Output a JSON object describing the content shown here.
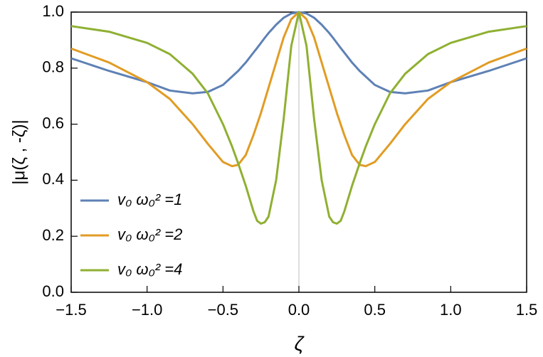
{
  "chart_data": {
    "type": "line",
    "x_label": "ζ",
    "y_label": "|μ(ζ , -ζ)|",
    "x": [
      -1.5,
      -1.25,
      -1.0,
      -0.85,
      -0.7,
      -0.6,
      -0.5,
      -0.44,
      -0.4,
      -0.35,
      -0.3,
      -0.275,
      -0.25,
      -0.225,
      -0.2,
      -0.15,
      -0.1,
      -0.05,
      0,
      0.05,
      0.1,
      0.15,
      0.2,
      0.225,
      0.25,
      0.275,
      0.3,
      0.35,
      0.4,
      0.44,
      0.5,
      0.6,
      0.7,
      0.85,
      1.0,
      1.25,
      1.5
    ],
    "series": [
      {
        "name": "v₀ ω₀² =1",
        "color": "#5e81b5",
        "values": [
          0.835,
          0.79,
          0.75,
          0.72,
          0.71,
          0.715,
          0.74,
          0.77,
          0.79,
          0.82,
          0.855,
          0.872,
          0.89,
          0.908,
          0.925,
          0.955,
          0.98,
          0.995,
          1.0,
          0.995,
          0.98,
          0.955,
          0.925,
          0.908,
          0.89,
          0.872,
          0.855,
          0.82,
          0.79,
          0.77,
          0.74,
          0.715,
          0.71,
          0.72,
          0.75,
          0.79,
          0.835
        ]
      },
      {
        "name": "v₀ ω₀² =2",
        "color": "#e19c24",
        "values": [
          0.87,
          0.82,
          0.75,
          0.69,
          0.6,
          0.53,
          0.465,
          0.45,
          0.455,
          0.49,
          0.56,
          0.6,
          0.64,
          0.685,
          0.73,
          0.82,
          0.91,
          0.975,
          1.0,
          0.975,
          0.91,
          0.82,
          0.73,
          0.685,
          0.64,
          0.6,
          0.56,
          0.49,
          0.455,
          0.45,
          0.465,
          0.53,
          0.6,
          0.69,
          0.75,
          0.82,
          0.87
        ]
      },
      {
        "name": "v₀ ω₀² =4",
        "color": "#8fb032",
        "values": [
          0.95,
          0.93,
          0.89,
          0.85,
          0.78,
          0.71,
          0.6,
          0.52,
          0.46,
          0.38,
          0.29,
          0.255,
          0.245,
          0.25,
          0.27,
          0.4,
          0.62,
          0.88,
          1.0,
          0.88,
          0.62,
          0.4,
          0.27,
          0.25,
          0.245,
          0.255,
          0.29,
          0.38,
          0.46,
          0.52,
          0.6,
          0.71,
          0.78,
          0.85,
          0.89,
          0.93,
          0.95
        ]
      }
    ],
    "xlim": [
      -1.5,
      1.5
    ],
    "xticks": [
      {
        "value": -1.5,
        "label": "−1.5"
      },
      {
        "value": -1.0,
        "label": "−1.0"
      },
      {
        "value": -0.5,
        "label": "−0.5"
      },
      {
        "value": 0,
        "label": "0.0"
      },
      0.5,
      {
        "value": 1,
        "label": "1.0"
      },
      1.5
    ],
    "ylim": [
      0,
      1
    ],
    "yticks": [
      {
        "value": 0,
        "label": "0.0"
      },
      0.2,
      0.4,
      0.6,
      0.8,
      {
        "value": 1,
        "label": "1.0"
      }
    ]
  }
}
